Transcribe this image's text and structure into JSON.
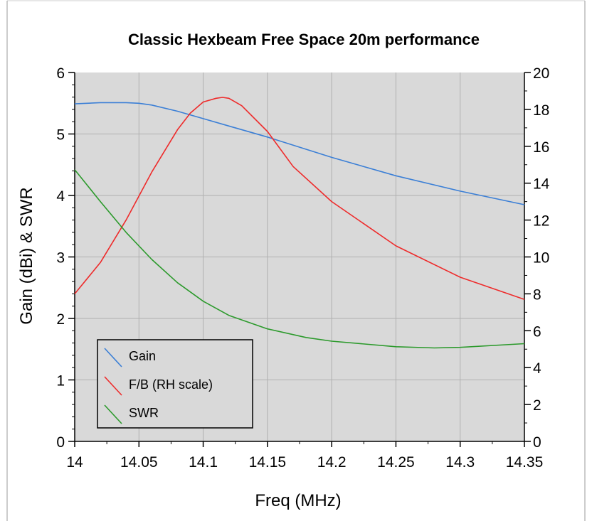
{
  "chart_data": {
    "type": "line",
    "title": "Classic Hexbeam Free Space 20m performance",
    "xlabel": "Freq (MHz)",
    "ylabel": "Gain (dBi) & SWR",
    "y2label": "",
    "xlim": [
      14.0,
      14.35
    ],
    "ylim": [
      0,
      6
    ],
    "y2lim": [
      0,
      20
    ],
    "x_ticks": [
      "14",
      "14.05",
      "14.1",
      "14.15",
      "14.2",
      "14.25",
      "14.3",
      "14.35"
    ],
    "y_ticks": [
      "0",
      "1",
      "2",
      "3",
      "4",
      "5",
      "6"
    ],
    "y2_ticks": [
      "0",
      "2",
      "4",
      "6",
      "8",
      "10",
      "12",
      "14",
      "16",
      "18",
      "20"
    ],
    "grid": true,
    "plot_background": "#d9d9d9",
    "legend_position": "bottom-left",
    "series": [
      {
        "name": "Gain",
        "axis": "left",
        "color": "#3b7fd6",
        "x": [
          14.0,
          14.02,
          14.04,
          14.05,
          14.06,
          14.08,
          14.1,
          14.12,
          14.15,
          14.2,
          14.25,
          14.3,
          14.35
        ],
        "y": [
          5.49,
          5.51,
          5.51,
          5.5,
          5.47,
          5.37,
          5.25,
          5.13,
          4.95,
          4.62,
          4.32,
          4.07,
          3.85
        ]
      },
      {
        "name": "F/B (RH scale)",
        "axis": "right",
        "color": "#ee2b2b",
        "x": [
          14.0,
          14.02,
          14.04,
          14.06,
          14.08,
          14.09,
          14.1,
          14.11,
          14.115,
          14.12,
          14.13,
          14.15,
          14.17,
          14.2,
          14.25,
          14.3,
          14.35
        ],
        "y": [
          8.0,
          9.7,
          12.0,
          14.6,
          16.9,
          17.8,
          18.4,
          18.6,
          18.65,
          18.6,
          18.2,
          16.8,
          14.9,
          13.0,
          10.6,
          8.9,
          7.7
        ]
      },
      {
        "name": "SWR",
        "axis": "left",
        "color": "#2c9a2c",
        "x": [
          14.0,
          14.02,
          14.04,
          14.06,
          14.08,
          14.1,
          14.12,
          14.15,
          14.18,
          14.2,
          14.25,
          14.28,
          14.3,
          14.35
        ],
        "y": [
          4.42,
          3.9,
          3.4,
          2.96,
          2.58,
          2.28,
          2.05,
          1.83,
          1.69,
          1.63,
          1.54,
          1.52,
          1.53,
          1.59
        ]
      }
    ]
  }
}
